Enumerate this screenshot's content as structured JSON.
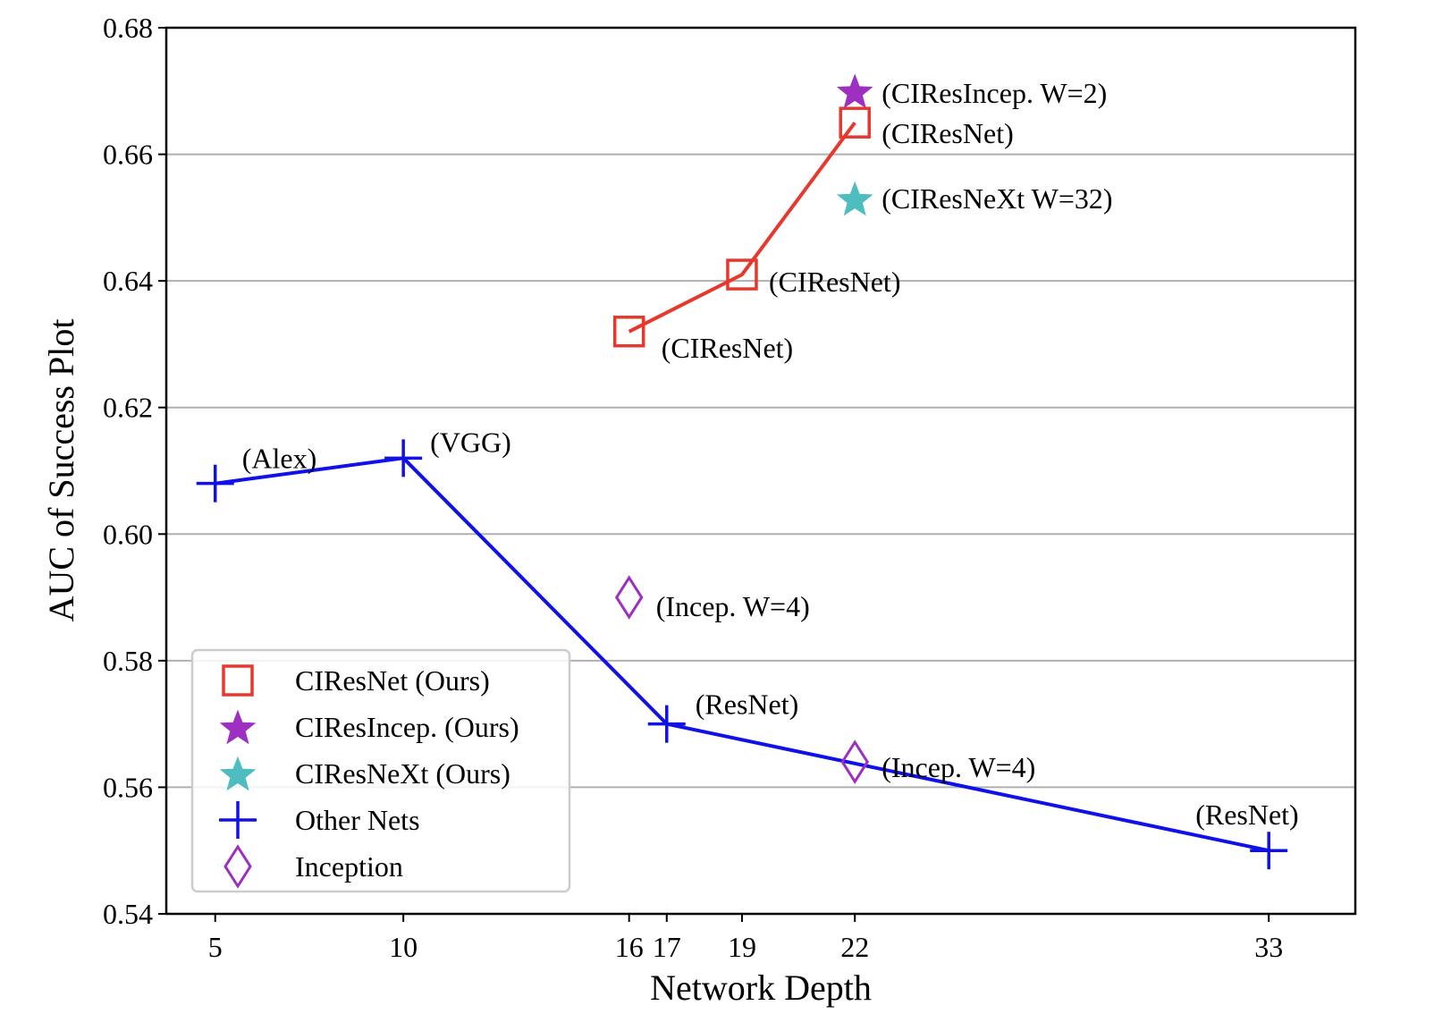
{
  "chart_data": {
    "type": "line",
    "xlabel": "Network Depth",
    "ylabel": "AUC of Success Plot",
    "xlim": [
      3.7,
      35.3
    ],
    "ylim": [
      0.54,
      0.68
    ],
    "x_scale": "index",
    "x_ticks": [
      5,
      10,
      16,
      17,
      19,
      22,
      33
    ],
    "x_tick_labels": [
      "5",
      "10",
      "16",
      "17",
      "19",
      "22",
      "33"
    ],
    "y_ticks": [
      0.54,
      0.56,
      0.58,
      0.6,
      0.62,
      0.64,
      0.66,
      0.68
    ],
    "y_tick_labels": [
      "0.54",
      "0.56",
      "0.58",
      "0.60",
      "0.62",
      "0.64",
      "0.66",
      "0.68"
    ],
    "grid": "horizontal",
    "legend_position": "lower-left",
    "series": [
      {
        "name": "CIResNet (Ours)",
        "color": "#e8372c",
        "marker": "square-open",
        "line": true,
        "points": [
          {
            "x": 16,
            "y": 0.632,
            "label": "(CIResNet)"
          },
          {
            "x": 19,
            "y": 0.641,
            "label": "(CIResNet)"
          },
          {
            "x": 22,
            "y": 0.665,
            "label": "(CIResNet)"
          }
        ]
      },
      {
        "name": "CIResIncep. (Ours)",
        "color": "#9d2fc1",
        "marker": "star",
        "line": false,
        "points": [
          {
            "x": 22,
            "y": 0.67,
            "label": "(CIResIncep. W=2)"
          }
        ]
      },
      {
        "name": "CIResNeXt (Ours)",
        "color": "#4dbdc0",
        "marker": "star",
        "line": false,
        "points": [
          {
            "x": 22,
            "y": 0.653,
            "label": "(CIResNeXt W=32)"
          }
        ]
      },
      {
        "name": "Other Nets",
        "color": "#1010e8",
        "marker": "plus",
        "line": true,
        "points": [
          {
            "x": 5,
            "y": 0.608,
            "label": "(Alex)"
          },
          {
            "x": 10,
            "y": 0.612,
            "label": "(VGG)"
          },
          {
            "x": 17,
            "y": 0.57,
            "label": "(ResNet)"
          },
          {
            "x": 33,
            "y": 0.55,
            "label": "(ResNet)"
          }
        ]
      },
      {
        "name": "Inception",
        "color": "#9d2fc1",
        "marker": "diamond-open",
        "line": false,
        "points": [
          {
            "x": 16,
            "y": 0.59,
            "label": "(Incep. W=4)"
          },
          {
            "x": 22,
            "y": 0.564,
            "label": "(Incep. W=4)"
          }
        ]
      }
    ]
  }
}
